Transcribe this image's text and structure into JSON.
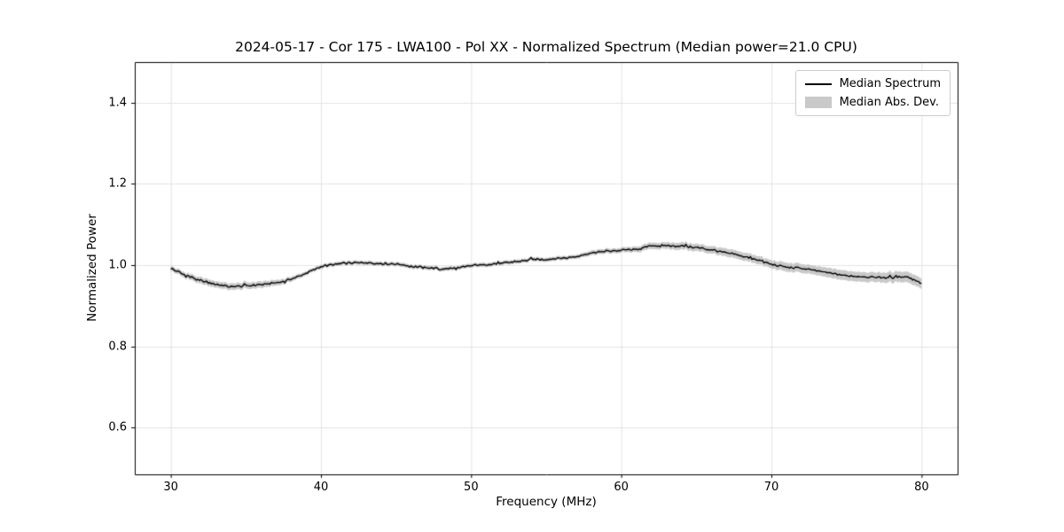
{
  "chart_data": {
    "type": "line",
    "title": "2024-05-17 - Cor 175 - LWA100 - Pol XX - Normalized Spectrum (Median power=21.0 CPU)",
    "xlabel": "Frequency (MHz)",
    "ylabel": "Normalized Power",
    "xlim": [
      27.6,
      82.4
    ],
    "ylim": [
      0.485,
      1.5
    ],
    "xticks": [
      30,
      40,
      50,
      60,
      70,
      80
    ],
    "yticks": [
      0.6,
      0.8,
      1.0,
      1.2,
      1.4
    ],
    "grid": true,
    "legend_position": "upper right",
    "noise": {
      "amplitude": 0.0035
    },
    "series": [
      {
        "name": "Median Spectrum",
        "type": "line",
        "color": "#000000",
        "x": [
          30,
          31,
          32,
          33,
          34,
          35,
          36,
          37,
          38,
          39,
          40,
          41,
          42,
          43,
          44,
          45,
          46,
          47,
          48,
          49,
          50,
          51,
          52,
          53,
          54,
          55,
          56,
          57,
          58,
          59,
          60,
          61,
          62,
          63,
          64,
          65,
          66,
          67,
          68,
          69,
          70,
          71,
          72,
          73,
          74,
          75,
          76,
          77,
          78,
          79,
          80
        ],
        "y": [
          0.992,
          0.975,
          0.962,
          0.953,
          0.947,
          0.949,
          0.952,
          0.956,
          0.965,
          0.98,
          0.997,
          1.003,
          1.006,
          1.006,
          1.004,
          1.003,
          0.997,
          0.994,
          0.991,
          0.992,
          0.999,
          1.002,
          1.004,
          1.009,
          1.013,
          1.015,
          1.017,
          1.021,
          1.03,
          1.034,
          1.037,
          1.038,
          1.048,
          1.048,
          1.047,
          1.044,
          1.038,
          1.03,
          1.023,
          1.014,
          1.002,
          0.995,
          0.992,
          0.986,
          0.98,
          0.974,
          0.972,
          0.97,
          0.969,
          0.972,
          0.956
        ]
      },
      {
        "name": "Median Abs. Dev.",
        "type": "band",
        "color": "#c9c9c9",
        "x": [
          30,
          31,
          32,
          33,
          34,
          35,
          36,
          37,
          38,
          39,
          40,
          41,
          42,
          43,
          44,
          45,
          46,
          47,
          48,
          49,
          50,
          51,
          52,
          53,
          54,
          55,
          56,
          57,
          58,
          59,
          60,
          61,
          62,
          63,
          64,
          65,
          66,
          67,
          68,
          69,
          70,
          71,
          72,
          73,
          74,
          75,
          76,
          77,
          78,
          79,
          80
        ],
        "half_width": [
          0.006,
          0.007,
          0.008,
          0.008,
          0.008,
          0.008,
          0.008,
          0.007,
          0.006,
          0.005,
          0.005,
          0.005,
          0.005,
          0.005,
          0.005,
          0.005,
          0.005,
          0.005,
          0.005,
          0.005,
          0.005,
          0.005,
          0.005,
          0.005,
          0.005,
          0.005,
          0.005,
          0.005,
          0.006,
          0.006,
          0.006,
          0.007,
          0.008,
          0.008,
          0.009,
          0.009,
          0.009,
          0.01,
          0.01,
          0.01,
          0.01,
          0.011,
          0.011,
          0.011,
          0.012,
          0.012,
          0.012,
          0.012,
          0.013,
          0.013,
          0.013
        ]
      }
    ]
  },
  "colors": {
    "line": "#000000",
    "band": "#c9c9c9",
    "grid": "#e3e3e3",
    "axes": "#000000",
    "background": "#ffffff"
  }
}
